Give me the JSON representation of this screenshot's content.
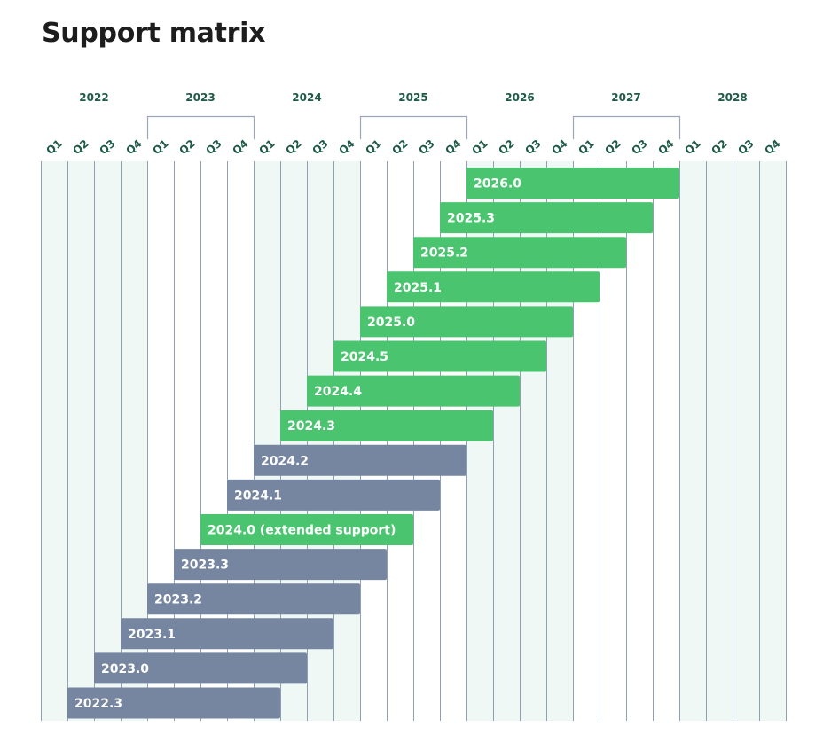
{
  "title": "Support matrix",
  "colors": {
    "supported": "#4bc46f",
    "unsupported": "#7686a1",
    "band_shaded": "#eff8f5",
    "gridline": "#8ea0b5",
    "axis_text": "#1f5a48",
    "bracket": "#9aa7b6"
  },
  "chart_data": {
    "type": "gantt",
    "years": [
      "2022",
      "2023",
      "2024",
      "2025",
      "2026",
      "2027",
      "2028"
    ],
    "quarters": [
      "Q1",
      "Q2",
      "Q3",
      "Q4"
    ],
    "bracketed_years": [
      "2023",
      "2025",
      "2027"
    ],
    "shaded_years": [
      "2022",
      "2024",
      "2026",
      "2028"
    ],
    "x_range": [
      "2022 Q1",
      "2028 Q4"
    ],
    "bars": [
      {
        "label": "2026.0",
        "start": "2026 Q1",
        "end": "2027 Q4",
        "status": "supported"
      },
      {
        "label": "2025.3",
        "start": "2025 Q4",
        "end": "2027 Q3",
        "status": "supported"
      },
      {
        "label": "2025.2",
        "start": "2025 Q3",
        "end": "2027 Q2",
        "status": "supported"
      },
      {
        "label": "2025.1",
        "start": "2025 Q2",
        "end": "2027 Q1",
        "status": "supported"
      },
      {
        "label": "2025.0",
        "start": "2025 Q1",
        "end": "2026 Q4",
        "status": "supported"
      },
      {
        "label": "2024.5",
        "start": "2024 Q4",
        "end": "2026 Q3",
        "status": "supported"
      },
      {
        "label": "2024.4",
        "start": "2024 Q3",
        "end": "2026 Q2",
        "status": "supported"
      },
      {
        "label": "2024.3",
        "start": "2024 Q2",
        "end": "2026 Q1",
        "status": "supported"
      },
      {
        "label": "2024.2",
        "start": "2024 Q1",
        "end": "2025 Q4",
        "status": "unsupported"
      },
      {
        "label": "2024.1",
        "start": "2023 Q4",
        "end": "2025 Q3",
        "status": "unsupported"
      },
      {
        "label": "2024.0 (extended support)",
        "start": "2023 Q3",
        "end": "2025 Q2",
        "status": "supported"
      },
      {
        "label": "2023.3",
        "start": "2023 Q2",
        "end": "2025 Q1",
        "status": "unsupported"
      },
      {
        "label": "2023.2",
        "start": "2023 Q1",
        "end": "2024 Q4",
        "status": "unsupported"
      },
      {
        "label": "2023.1",
        "start": "2022 Q4",
        "end": "2024 Q3",
        "status": "unsupported"
      },
      {
        "label": "2023.0",
        "start": "2022 Q3",
        "end": "2024 Q2",
        "status": "unsupported"
      },
      {
        "label": "2022.3",
        "start": "2022 Q2",
        "end": "2024 Q1",
        "status": "unsupported"
      }
    ]
  }
}
